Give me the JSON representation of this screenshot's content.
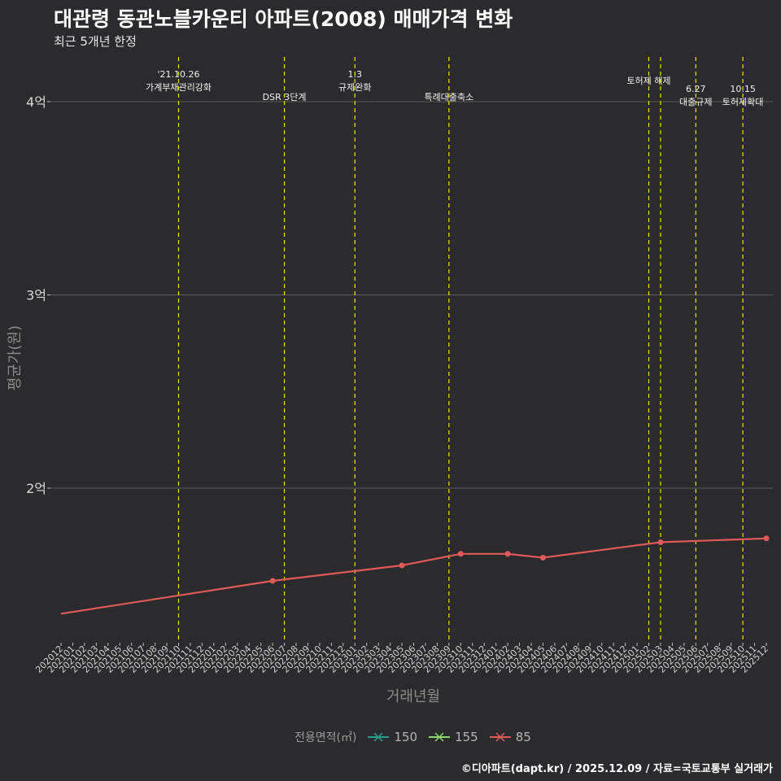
{
  "title": "대관령 동관노블카운티 아파트(2008) 매매가격 변화",
  "subtitle": "최근 5개년 한정",
  "footer": "©디아파트(dapt.kr) / 2025.12.09 / 자료=국토교통부 실거래가",
  "chart_data": {
    "type": "line",
    "xlabel": "거래년월",
    "ylabel": "평균가(원)",
    "ylim": [
      1.3,
      4.3
    ],
    "yticks": [
      {
        "value": 2,
        "label": "2억"
      },
      {
        "value": 3,
        "label": "3억"
      },
      {
        "value": 4,
        "label": "4억"
      }
    ],
    "categories": [
      "202012",
      "202101",
      "202102",
      "202103",
      "202104",
      "202105",
      "202106",
      "202107",
      "202108",
      "202109",
      "202110",
      "202111",
      "202112",
      "202201",
      "202202",
      "202203",
      "202204",
      "202205",
      "202206",
      "202207",
      "202208",
      "202209",
      "202210",
      "202211",
      "202212",
      "202301",
      "202302",
      "202303",
      "202304",
      "202305",
      "202306",
      "202307",
      "202308",
      "202309",
      "202310",
      "202311",
      "202312",
      "202401",
      "202402",
      "202403",
      "202404",
      "202405",
      "202406",
      "202407",
      "202408",
      "202409",
      "202410",
      "202411",
      "202412",
      "202501",
      "202502",
      "202503",
      "202504",
      "202505",
      "202506",
      "202507",
      "202508",
      "202509",
      "202510",
      "202511",
      "202512"
    ],
    "legend_title": "전용면적(㎡)",
    "legend_position": "bottom",
    "series": [
      {
        "name": "150",
        "color": "#2a9d8f",
        "points": []
      },
      {
        "name": "155",
        "color": "#8fd66e",
        "points": []
      },
      {
        "name": "85",
        "color": "#e05a5a",
        "points": [
          {
            "x": "202012",
            "y": 1.35
          },
          {
            "x": "202206",
            "y": 1.52
          },
          {
            "x": "202305",
            "y": 1.6
          },
          {
            "x": "202310",
            "y": 1.66
          },
          {
            "x": "202402",
            "y": 1.66
          },
          {
            "x": "202405",
            "y": 1.64
          },
          {
            "x": "202503",
            "y": 1.72
          },
          {
            "x": "202512",
            "y": 1.74
          }
        ]
      }
    ],
    "events": [
      {
        "x": "202110",
        "lines": [
          "'21.10.26",
          "가계부채관리강화"
        ],
        "row": "top"
      },
      {
        "x": "202207",
        "lines": [
          "DSR 3단계"
        ],
        "row": "low"
      },
      {
        "x": "202301",
        "lines": [
          "1.3",
          "규제완화"
        ],
        "row": "top"
      },
      {
        "x": "202309",
        "lines": [
          "특례대출축소"
        ],
        "row": "low"
      },
      {
        "x": "202502",
        "lines": [
          "토허제 해제"
        ],
        "row": "top"
      },
      {
        "x": "202503",
        "lines": [],
        "row": "none"
      },
      {
        "x": "202506",
        "lines": [
          "6.27",
          "대출규제"
        ],
        "row": "mid"
      },
      {
        "x": "202510",
        "lines": [
          "10.15",
          "토허제확대"
        ],
        "row": "mid"
      }
    ]
  }
}
